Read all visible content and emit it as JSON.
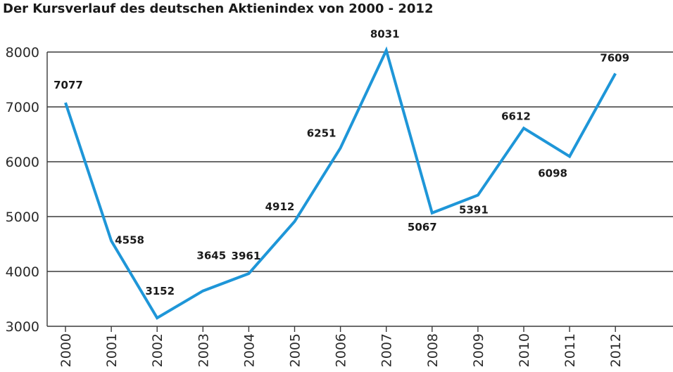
{
  "chart_data": {
    "type": "line",
    "title": "Der Kursverlauf des deutschen Aktienindex von 2000 - 2012",
    "xlabel": "",
    "ylabel": "",
    "categories": [
      "2000",
      "2001",
      "2002",
      "2003",
      "2004",
      "2005",
      "2006",
      "2007",
      "2008",
      "2009",
      "2010",
      "2011",
      "2012"
    ],
    "series": [
      {
        "values": [
          7077,
          4558,
          3152,
          3645,
          3961,
          4912,
          6251,
          8031,
          5067,
          5391,
          6612,
          6098,
          7609
        ],
        "color": "#1e96d8"
      }
    ],
    "data_labels": [
      "7077",
      "4558",
      "3152",
      "3645",
      "3961",
      "4912",
      "6251",
      "8031",
      "5067",
      "5391",
      "6612",
      "6098",
      "7609"
    ],
    "ylim": [
      3000,
      8000
    ],
    "yticks": [
      3000,
      4000,
      5000,
      6000,
      7000,
      8000
    ],
    "ytick_labels": [
      "3000",
      "4000",
      "5000",
      "6000",
      "7000",
      "8000"
    ],
    "grid": true,
    "legend": "none"
  }
}
